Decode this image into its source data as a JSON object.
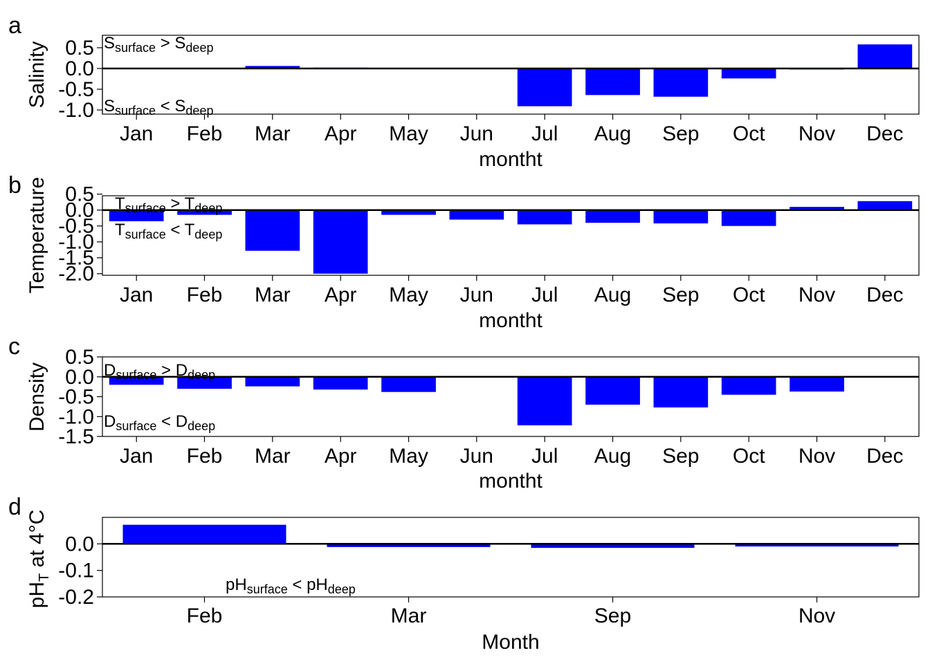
{
  "chart_data": [
    {
      "panel": "a",
      "type": "bar",
      "categories": [
        "Jan",
        "Feb",
        "Mar",
        "Apr",
        "May",
        "Jun",
        "Jul",
        "Aug",
        "Sep",
        "Oct",
        "Nov",
        "Dec"
      ],
      "values": [
        0,
        0,
        0.06,
        0.02,
        0,
        0,
        -0.91,
        -0.64,
        -0.68,
        -0.24,
        -0.02,
        0.58
      ],
      "xlabel": "montht",
      "ylabel": "Salinity",
      "ylim": [
        -1.1,
        0.8
      ],
      "yticks": [
        0.5,
        0.0,
        -0.5,
        -1.0
      ],
      "ytick_labels": [
        "0.5",
        "0.0",
        "-0.5",
        "-1.0"
      ],
      "bar_color": "#0000ff",
      "annotations": [
        {
          "main": "S",
          "sub": "surface",
          "rel": " > ",
          "main2": "S",
          "sub2": "deep"
        },
        {
          "main": "S",
          "sub": "surface",
          "rel": " < ",
          "main2": "S",
          "sub2": "deep"
        }
      ]
    },
    {
      "panel": "b",
      "type": "bar",
      "categories": [
        "Jan",
        "Feb",
        "Mar",
        "Apr",
        "May",
        "Jun",
        "Jul",
        "Aug",
        "Sep",
        "Oct",
        "Nov",
        "Dec"
      ],
      "values": [
        -0.35,
        -0.15,
        -1.28,
        -2.0,
        -0.15,
        -0.3,
        -0.45,
        -0.4,
        -0.42,
        -0.5,
        0.1,
        0.28
      ],
      "xlabel": "montht",
      "ylabel": "Temperature",
      "ylim": [
        -2.05,
        0.45
      ],
      "yticks": [
        0.5,
        0.0,
        -0.5,
        -1.0,
        -1.5,
        -2.0
      ],
      "ytick_labels": [
        "0.5",
        "0.0",
        "-0.5",
        "-1.0",
        "-1.5",
        "-2.0"
      ],
      "bar_color": "#0000ff",
      "annotations": [
        {
          "main": "T",
          "sub": "surface",
          "rel": " > ",
          "main2": "T",
          "sub2": "deep"
        },
        {
          "main": "T",
          "sub": "surface",
          "rel": " < ",
          "main2": "T",
          "sub2": "deep"
        }
      ]
    },
    {
      "panel": "c",
      "type": "bar",
      "categories": [
        "Jan",
        "Feb",
        "Mar",
        "Apr",
        "May",
        "Jun",
        "Jul",
        "Aug",
        "Sep",
        "Oct",
        "Nov",
        "Dec"
      ],
      "values": [
        -0.2,
        -0.3,
        -0.24,
        -0.32,
        -0.38,
        0,
        -1.22,
        -0.7,
        -0.77,
        -0.45,
        -0.37,
        0
      ],
      "xlabel": "montht",
      "ylabel": "Density",
      "ylim": [
        -1.5,
        0.5
      ],
      "yticks": [
        0.5,
        0.0,
        -0.5,
        -1.0,
        -1.5
      ],
      "ytick_labels": [
        "0.5",
        "0.0",
        "-0.5",
        "-1.0",
        "-1.5"
      ],
      "bar_color": "#0000ff",
      "annotations": [
        {
          "main": "D",
          "sub": "surface",
          "rel": " > ",
          "main2": "D",
          "sub2": "deep"
        },
        {
          "main": "D",
          "sub": "surface",
          "rel": " < ",
          "main2": "D",
          "sub2": "deep"
        }
      ]
    },
    {
      "panel": "d",
      "type": "bar",
      "categories": [
        "Feb",
        "Mar",
        "Sep",
        "Nov"
      ],
      "values": [
        0.072,
        -0.012,
        -0.015,
        -0.01
      ],
      "xlabel": "Month",
      "ylabel_main": "pH",
      "ylabel_sub": "T",
      "ylabel_rest": " at 4°C",
      "ylim": [
        -0.2,
        0.1
      ],
      "yticks": [
        0.0,
        -0.1,
        -0.2
      ],
      "ytick_labels": [
        "0.0",
        "-0.1",
        "-0.2"
      ],
      "bar_color": "#0000ff",
      "annotations": [
        {
          "main": "pH",
          "sub": "surface",
          "rel": " < ",
          "main2": "pH",
          "sub2": "deep"
        }
      ]
    }
  ]
}
